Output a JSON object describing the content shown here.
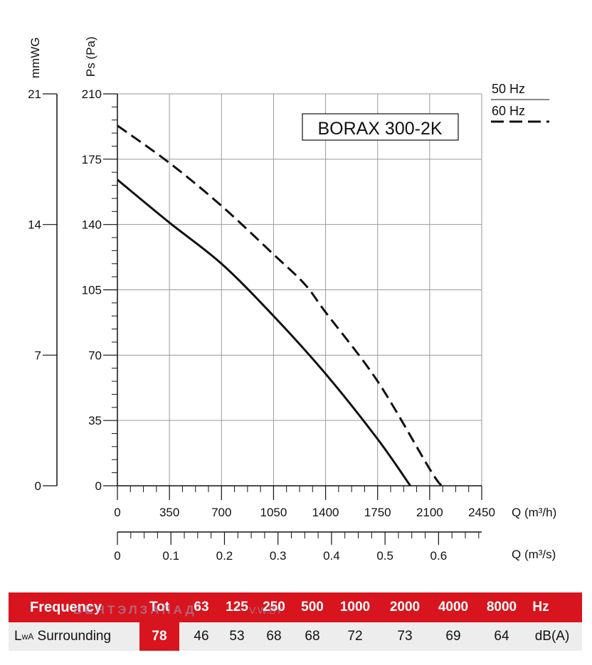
{
  "chart_data": {
    "type": "line",
    "title": "BORAX 300-2K",
    "ylabel": "Ps (Pa)",
    "ylabel2": "mmWG",
    "xlabel": "Q (m³/h)",
    "xlabel2": "Q (m³/s)",
    "xlim": [
      0,
      2450
    ],
    "ylim": [
      0,
      210
    ],
    "x_ticks": [
      "0",
      "350",
      "700",
      "1050",
      "1400",
      "1750",
      "2100",
      "2450"
    ],
    "x_tick_values": [
      0,
      350,
      700,
      1050,
      1400,
      1750,
      2100,
      2450
    ],
    "y_ticks": [
      "0",
      "35",
      "70",
      "105",
      "140",
      "175",
      "210"
    ],
    "y_tick_values": [
      0,
      35,
      70,
      105,
      140,
      175,
      210
    ],
    "y2_ticks": [
      "0",
      "7",
      "14",
      "21"
    ],
    "y2_tick_values": [
      0,
      70,
      140,
      210
    ],
    "x2_ticks": [
      "0",
      "0.1",
      "0.2",
      "0.3",
      "0.4",
      "0.5",
      "0.6"
    ],
    "x2_tick_values": [
      0,
      0.1,
      0.2,
      0.3,
      0.4,
      0.5,
      0.6
    ],
    "x2_max": 0.6806,
    "grid": true,
    "legend": [
      {
        "label": "50 Hz",
        "style": "solid"
      },
      {
        "label": "60 Hz",
        "style": "dashed"
      }
    ],
    "series": [
      {
        "name": "50 Hz",
        "style": "solid",
        "points": [
          [
            0,
            164
          ],
          [
            350,
            141
          ],
          [
            700,
            119
          ],
          [
            1050,
            91
          ],
          [
            1400,
            60
          ],
          [
            1750,
            25
          ],
          [
            1970,
            0
          ]
        ]
      },
      {
        "name": "60 Hz",
        "style": "dashed",
        "points": [
          [
            0,
            193
          ],
          [
            350,
            173
          ],
          [
            700,
            150
          ],
          [
            1050,
            124
          ],
          [
            1260,
            108
          ],
          [
            1400,
            93
          ],
          [
            1750,
            56
          ],
          [
            2100,
            9
          ],
          [
            2180,
            0
          ]
        ]
      }
    ]
  },
  "table": {
    "header": {
      "frequency_label": "Frequency",
      "tot_label": "Tot",
      "bands": [
        "63",
        "125",
        "250",
        "500",
        "1000",
        "2000",
        "4000",
        "8000"
      ],
      "unit": "Hz"
    },
    "row": {
      "label_main": "L",
      "label_sub": "wA",
      "label_rest": " Surrounding",
      "tot_value": "78",
      "values": [
        "46",
        "53",
        "68",
        "68",
        "72",
        "73",
        "69",
        "64"
      ],
      "unit": "dB(A)"
    }
  },
  "watermark": {
    "text": "ВЕНТЭЛЗАПАД",
    "url": "V.W.BY"
  }
}
